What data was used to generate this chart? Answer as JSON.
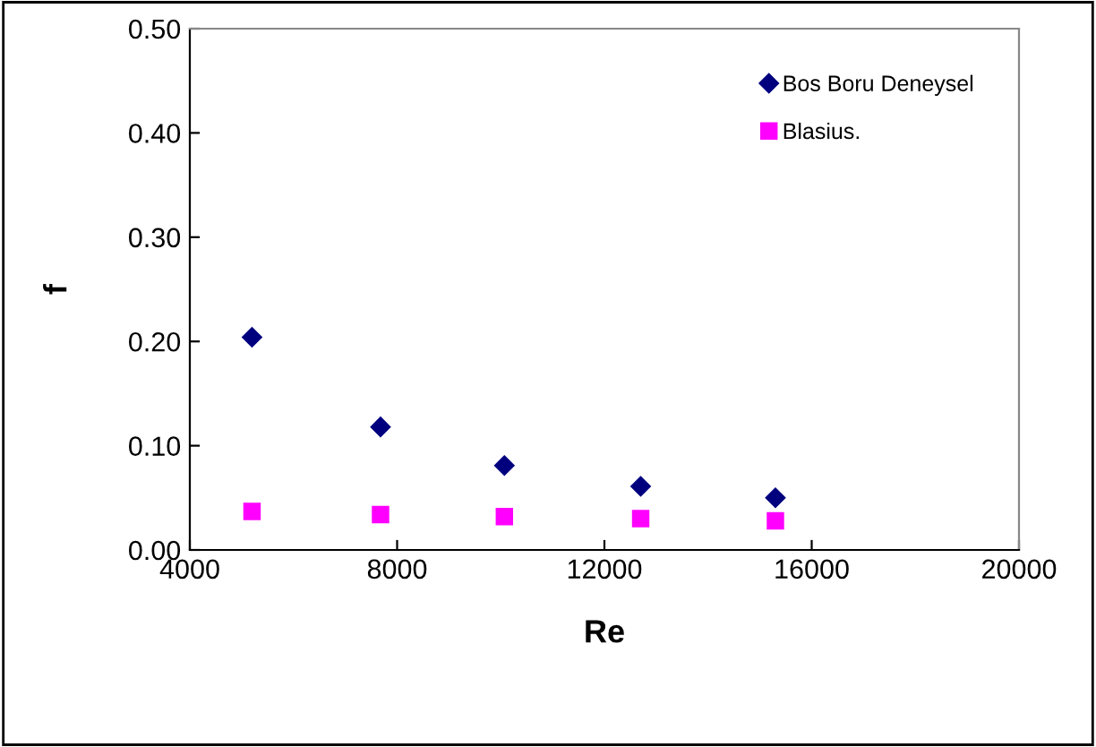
{
  "chart_data": {
    "type": "scatter",
    "xlabel": "Re",
    "ylabel": "f",
    "x": [
      5200,
      7680,
      10070,
      12700,
      15300
    ],
    "series": [
      {
        "name": "Bos Boru Deneysel",
        "color": "#00007f",
        "marker": "diamond",
        "values": [
          0.204,
          0.118,
          0.081,
          0.061,
          0.05
        ]
      },
      {
        "name": "Blasius.",
        "color": "#ff00ff",
        "marker": "square",
        "values": [
          0.037,
          0.034,
          0.032,
          0.03,
          0.028
        ]
      }
    ],
    "xlim": [
      4000,
      20000
    ],
    "xticks": [
      4000,
      8000,
      12000,
      16000,
      20000
    ],
    "ylim": [
      0,
      0.5
    ],
    "yticks": [
      {
        "value": 0,
        "label": "0.00"
      },
      {
        "value": 0.1,
        "label": "0.10"
      },
      {
        "value": 0.2,
        "label": "0.20"
      },
      {
        "value": 0.3,
        "label": "0.30"
      },
      {
        "value": 0.4,
        "label": "0.40"
      },
      {
        "value": 0.5,
        "label": "0.50"
      }
    ],
    "grid": false,
    "legend": "top right"
  }
}
